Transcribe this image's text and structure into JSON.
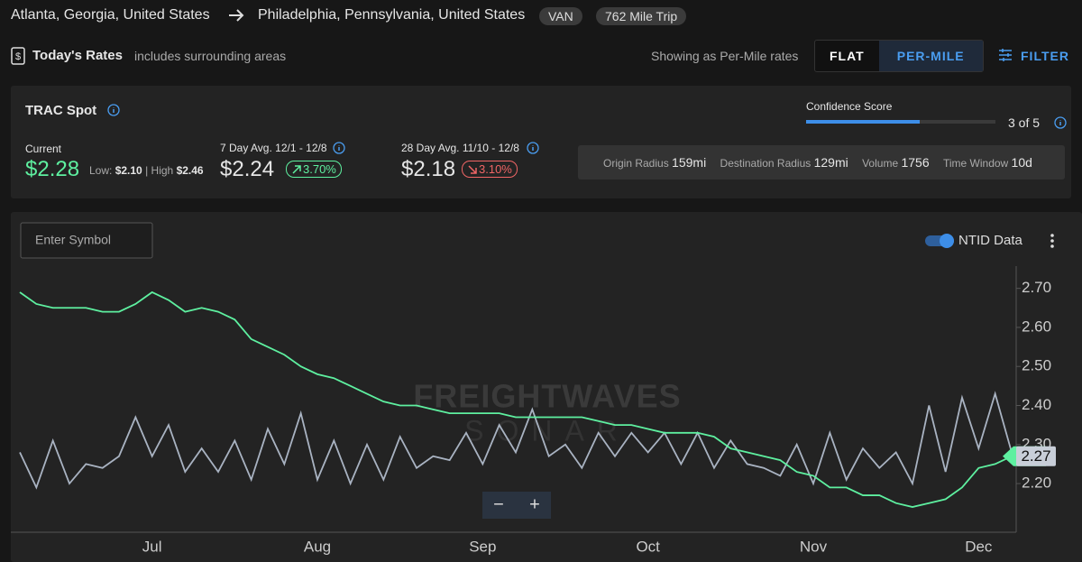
{
  "header": {
    "origin": "Atlanta, Georgia, United States",
    "destination": "Philadelphia, Pennsylvania, United States",
    "badges": [
      "VAN",
      "762 Mile Trip"
    ]
  },
  "toolbar": {
    "title": "Today's Rates",
    "subtitle": "includes surrounding areas",
    "mode_note": "Showing as Per-Mile rates",
    "buttons": [
      "FLAT",
      "PER-MILE"
    ],
    "filter": "FILTER"
  },
  "rates": {
    "title": "TRAC Spot",
    "confidence": {
      "label": "Confidence Score",
      "score": 3,
      "max": 5,
      "text": "3 of 5"
    },
    "current": {
      "label": "Current",
      "value": "$2.28",
      "low_label": "Low:",
      "low": "$2.10",
      "high_label": "High",
      "high": "$2.46"
    },
    "avg7": {
      "label": "7 Day Avg. 12/1 - 12/8",
      "value": "$2.24",
      "change": "3.70%"
    },
    "avg28": {
      "label": "28 Day Avg. 11/10 - 12/8",
      "value": "$2.18",
      "change": "3.10%"
    },
    "params": [
      {
        "label": "Origin Radius",
        "value": "159mi"
      },
      {
        "label": "Destination Radius",
        "value": "129mi"
      },
      {
        "label": "Volume",
        "value": "1756"
      },
      {
        "label": "Time Window",
        "value": "10d"
      }
    ]
  },
  "chart_controls": {
    "search_placeholder": "Enter Symbol",
    "toggle": "NTID Data",
    "zoom": [
      "−",
      "+"
    ],
    "watermark": [
      "FREIGHTWAVES",
      "SONAR"
    ]
  },
  "chart_data": {
    "type": "line",
    "categories": [
      null,
      null,
      null,
      null,
      null,
      null,
      null,
      null,
      "Jul",
      null,
      null,
      null,
      null,
      null,
      null,
      null,
      null,
      null,
      "Aug",
      null,
      null,
      null,
      null,
      null,
      null,
      null,
      null,
      null,
      "Sep",
      null,
      null,
      null,
      null,
      null,
      null,
      null,
      null,
      null,
      "Oct",
      null,
      null,
      null,
      null,
      null,
      null,
      null,
      null,
      null,
      "Nov",
      null,
      null,
      null,
      null,
      null,
      null,
      null,
      null,
      null,
      "Dec",
      null,
      null
    ],
    "series": [
      {
        "color": "#5ef0a0",
        "values": [
          2.69,
          2.66,
          2.65,
          2.65,
          2.65,
          2.64,
          2.64,
          2.66,
          2.69,
          2.67,
          2.64,
          2.65,
          2.64,
          2.62,
          2.57,
          2.55,
          2.53,
          2.5,
          2.48,
          2.47,
          2.45,
          2.43,
          2.41,
          2.4,
          2.4,
          2.39,
          2.38,
          2.38,
          2.38,
          2.38,
          2.37,
          2.37,
          2.37,
          2.37,
          2.37,
          2.36,
          2.35,
          2.35,
          2.34,
          2.33,
          2.33,
          2.33,
          2.32,
          2.29,
          2.28,
          2.27,
          2.26,
          2.23,
          2.22,
          2.19,
          2.19,
          2.17,
          2.17,
          2.15,
          2.14,
          2.15,
          2.16,
          2.19,
          2.24,
          2.25,
          2.27
        ]
      },
      {
        "color": "#a9b3c2",
        "values": [
          2.28,
          2.19,
          2.31,
          2.2,
          2.25,
          2.24,
          2.27,
          2.37,
          2.27,
          2.35,
          2.23,
          2.29,
          2.23,
          2.31,
          2.21,
          2.34,
          2.25,
          2.38,
          2.21,
          2.31,
          2.2,
          2.3,
          2.21,
          2.32,
          2.24,
          2.27,
          2.26,
          2.33,
          2.25,
          2.35,
          2.28,
          2.39,
          2.27,
          2.3,
          2.24,
          2.33,
          2.27,
          2.33,
          2.28,
          2.33,
          2.25,
          2.33,
          2.24,
          2.31,
          2.25,
          2.24,
          2.22,
          2.3,
          2.2,
          2.33,
          2.21,
          2.29,
          2.24,
          2.28,
          2.2,
          2.4,
          2.23,
          2.42,
          2.29,
          2.43,
          2.28
        ]
      }
    ],
    "ylim": [
      2.08,
      2.75
    ],
    "yticks": [
      {
        "value": 2.2,
        "label": "2.20"
      },
      {
        "value": 2.3,
        "label": "2.30"
      },
      {
        "value": 2.4,
        "label": "2.40"
      },
      {
        "value": 2.5,
        "label": "2.50"
      },
      {
        "value": 2.6,
        "label": "2.60"
      },
      {
        "value": 2.7,
        "label": "2.70"
      }
    ],
    "grid": false
  }
}
